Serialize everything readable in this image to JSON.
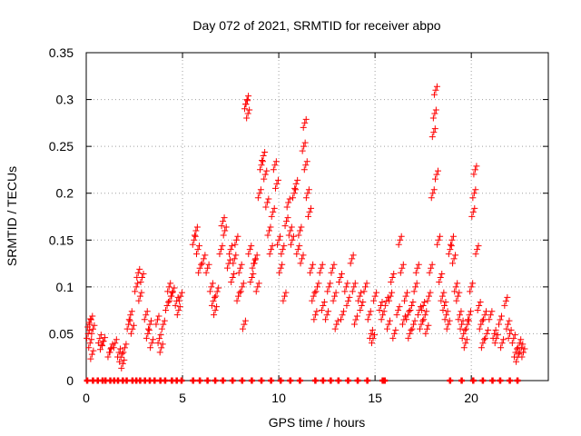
{
  "chart_data": {
    "type": "scatter",
    "title": "Day 072 of 2021, SRMTID for receiver abpo",
    "xlabel": "GPS time / hours",
    "ylabel": "SRMTID / TECUs",
    "xlim": [
      0,
      24
    ],
    "ylim": [
      0,
      0.35
    ],
    "x_ticks": [
      0,
      5,
      10,
      15,
      20
    ],
    "x_tick_labels": [
      "0",
      "5",
      "10",
      "15",
      "20"
    ],
    "y_ticks": [
      0,
      0.05,
      0.1,
      0.15,
      0.2,
      0.25,
      0.3,
      0.35
    ],
    "y_tick_labels": [
      "0",
      "0.05",
      "0.1",
      "0.15",
      "0.2",
      "0.25",
      "0.3",
      "0.35"
    ],
    "grid": true,
    "marker": "plus",
    "series": [
      {
        "name": "SRMTID",
        "color": "#ff0000",
        "points": [
          [
            0.1,
            0.05
          ],
          [
            0.15,
            0.062
          ],
          [
            0.2,
            0.04
          ],
          [
            0.25,
            0.065
          ],
          [
            0.3,
            0.028
          ],
          [
            0.35,
            0.055
          ],
          [
            0.7,
            0.045
          ],
          [
            0.8,
            0.038
          ],
          [
            0.9,
            0.042
          ],
          [
            1.2,
            0.03
          ],
          [
            1.3,
            0.035
          ],
          [
            1.5,
            0.04
          ],
          [
            1.7,
            0.03
          ],
          [
            1.8,
            0.025
          ],
          [
            1.9,
            0.018
          ],
          [
            2.0,
            0.035
          ],
          [
            2.2,
            0.06
          ],
          [
            2.3,
            0.07
          ],
          [
            2.4,
            0.055
          ],
          [
            2.6,
            0.1
          ],
          [
            2.7,
            0.115
          ],
          [
            2.8,
            0.09
          ],
          [
            2.9,
            0.11
          ],
          [
            3.1,
            0.07
          ],
          [
            3.2,
            0.05
          ],
          [
            3.3,
            0.06
          ],
          [
            3.4,
            0.04
          ],
          [
            3.7,
            0.065
          ],
          [
            3.8,
            0.045
          ],
          [
            3.9,
            0.035
          ],
          [
            4.0,
            0.06
          ],
          [
            4.2,
            0.08
          ],
          [
            4.3,
            0.1
          ],
          [
            4.4,
            0.09
          ],
          [
            4.5,
            0.095
          ],
          [
            4.7,
            0.085
          ],
          [
            4.8,
            0.075
          ],
          [
            4.9,
            0.09
          ],
          [
            5.6,
            0.15
          ],
          [
            5.7,
            0.16
          ],
          [
            5.8,
            0.14
          ],
          [
            5.9,
            0.12
          ],
          [
            6.1,
            0.13
          ],
          [
            6.3,
            0.12
          ],
          [
            6.5,
            0.1
          ],
          [
            6.6,
            0.085
          ],
          [
            6.7,
            0.075
          ],
          [
            6.8,
            0.095
          ],
          [
            7.0,
            0.14
          ],
          [
            7.1,
            0.17
          ],
          [
            7.2,
            0.16
          ],
          [
            7.4,
            0.125
          ],
          [
            7.5,
            0.14
          ],
          [
            7.6,
            0.11
          ],
          [
            7.7,
            0.13
          ],
          [
            7.8,
            0.15
          ],
          [
            7.9,
            0.09
          ],
          [
            8.0,
            0.12
          ],
          [
            8.1,
            0.1
          ],
          [
            8.2,
            0.06
          ],
          [
            8.3,
            0.295
          ],
          [
            8.35,
            0.3
          ],
          [
            8.4,
            0.285
          ],
          [
            8.5,
            0.14
          ],
          [
            8.6,
            0.11
          ],
          [
            8.7,
            0.125
          ],
          [
            8.8,
            0.13
          ],
          [
            8.9,
            0.1
          ],
          [
            9.0,
            0.2
          ],
          [
            9.1,
            0.23
          ],
          [
            9.2,
            0.24
          ],
          [
            9.3,
            0.22
          ],
          [
            9.4,
            0.19
          ],
          [
            9.5,
            0.16
          ],
          [
            9.6,
            0.14
          ],
          [
            9.7,
            0.18
          ],
          [
            9.8,
            0.23
          ],
          [
            9.9,
            0.21
          ],
          [
            10.0,
            0.15
          ],
          [
            10.1,
            0.12
          ],
          [
            10.2,
            0.14
          ],
          [
            10.3,
            0.09
          ],
          [
            10.4,
            0.17
          ],
          [
            10.5,
            0.19
          ],
          [
            10.6,
            0.16
          ],
          [
            10.7,
            0.15
          ],
          [
            10.8,
            0.2
          ],
          [
            10.9,
            0.21
          ],
          [
            11.0,
            0.14
          ],
          [
            11.1,
            0.16
          ],
          [
            11.2,
            0.13
          ],
          [
            11.3,
            0.25
          ],
          [
            11.35,
            0.275
          ],
          [
            11.4,
            0.23
          ],
          [
            11.5,
            0.2
          ],
          [
            11.6,
            0.18
          ],
          [
            11.7,
            0.12
          ],
          [
            11.8,
            0.09
          ],
          [
            11.9,
            0.07
          ],
          [
            12.0,
            0.1
          ],
          [
            12.2,
            0.12
          ],
          [
            12.3,
            0.08
          ],
          [
            12.5,
            0.07
          ],
          [
            12.6,
            0.1
          ],
          [
            12.8,
            0.12
          ],
          [
            12.9,
            0.09
          ],
          [
            13.0,
            0.06
          ],
          [
            13.2,
            0.11
          ],
          [
            13.3,
            0.07
          ],
          [
            13.5,
            0.1
          ],
          [
            13.6,
            0.085
          ],
          [
            13.8,
            0.13
          ],
          [
            13.9,
            0.1
          ],
          [
            14.0,
            0.065
          ],
          [
            14.2,
            0.09
          ],
          [
            14.3,
            0.08
          ],
          [
            14.5,
            0.1
          ],
          [
            14.7,
            0.07
          ],
          [
            14.8,
            0.05
          ],
          [
            14.9,
            0.045
          ],
          [
            15.0,
            0.09
          ],
          [
            15.3,
            0.08
          ],
          [
            15.4,
            0.07
          ],
          [
            15.6,
            0.085
          ],
          [
            15.7,
            0.06
          ],
          [
            15.8,
            0.09
          ],
          [
            15.9,
            0.11
          ],
          [
            16.0,
            0.05
          ],
          [
            16.2,
            0.075
          ],
          [
            16.3,
            0.15
          ],
          [
            16.4,
            0.12
          ],
          [
            16.5,
            0.065
          ],
          [
            16.6,
            0.09
          ],
          [
            16.7,
            0.07
          ],
          [
            16.8,
            0.05
          ],
          [
            16.9,
            0.08
          ],
          [
            17.0,
            0.06
          ],
          [
            17.1,
            0.1
          ],
          [
            17.2,
            0.12
          ],
          [
            17.3,
            0.075
          ],
          [
            17.4,
            0.06
          ],
          [
            17.5,
            0.08
          ],
          [
            17.6,
            0.07
          ],
          [
            17.7,
            0.055
          ],
          [
            17.8,
            0.09
          ],
          [
            17.9,
            0.12
          ],
          [
            18.0,
            0.2
          ],
          [
            18.05,
            0.265
          ],
          [
            18.1,
            0.285
          ],
          [
            18.15,
            0.31
          ],
          [
            18.2,
            0.22
          ],
          [
            18.3,
            0.15
          ],
          [
            18.4,
            0.11
          ],
          [
            18.5,
            0.09
          ],
          [
            18.6,
            0.08
          ],
          [
            18.7,
            0.07
          ],
          [
            18.8,
            0.06
          ],
          [
            18.9,
            0.14
          ],
          [
            19.0,
            0.15
          ],
          [
            19.1,
            0.13
          ],
          [
            19.2,
            0.1
          ],
          [
            19.3,
            0.09
          ],
          [
            19.4,
            0.07
          ],
          [
            19.5,
            0.06
          ],
          [
            19.6,
            0.05
          ],
          [
            19.7,
            0.04
          ],
          [
            19.8,
            0.06
          ],
          [
            19.9,
            0.07
          ],
          [
            20.0,
            0.1
          ],
          [
            20.1,
            0.18
          ],
          [
            20.15,
            0.2
          ],
          [
            20.2,
            0.225
          ],
          [
            20.3,
            0.14
          ],
          [
            20.4,
            0.08
          ],
          [
            20.5,
            0.06
          ],
          [
            20.6,
            0.04
          ],
          [
            20.7,
            0.07
          ],
          [
            20.8,
            0.05
          ],
          [
            21.0,
            0.07
          ],
          [
            21.2,
            0.05
          ],
          [
            21.3,
            0.045
          ],
          [
            21.5,
            0.065
          ],
          [
            21.6,
            0.04
          ],
          [
            21.8,
            0.085
          ],
          [
            21.9,
            0.06
          ],
          [
            22.0,
            0.05
          ],
          [
            22.2,
            0.045
          ],
          [
            22.3,
            0.03
          ],
          [
            22.4,
            0.025
          ],
          [
            22.5,
            0.04
          ],
          [
            22.6,
            0.035
          ],
          [
            22.7,
            0.03
          ]
        ]
      }
    ],
    "zero_points_x": [
      0.05,
      0.35,
      0.6,
      0.85,
      1.0,
      1.25,
      1.45,
      1.65,
      1.9,
      2.1,
      2.4,
      2.6,
      2.8,
      3.05,
      3.3,
      3.55,
      3.85,
      4.1,
      4.45,
      4.7,
      4.95,
      5.55,
      5.9,
      6.3,
      6.7,
      7.1,
      7.6,
      8.1,
      8.6,
      9.1,
      9.6,
      10.1,
      10.6,
      11.1,
      11.9,
      12.3,
      12.7,
      13.1,
      13.6,
      14.1,
      14.6,
      15.4,
      15.5,
      18.9,
      19.5,
      20.1,
      20.6,
      21.1,
      21.5,
      22.0,
      22.4
    ]
  }
}
